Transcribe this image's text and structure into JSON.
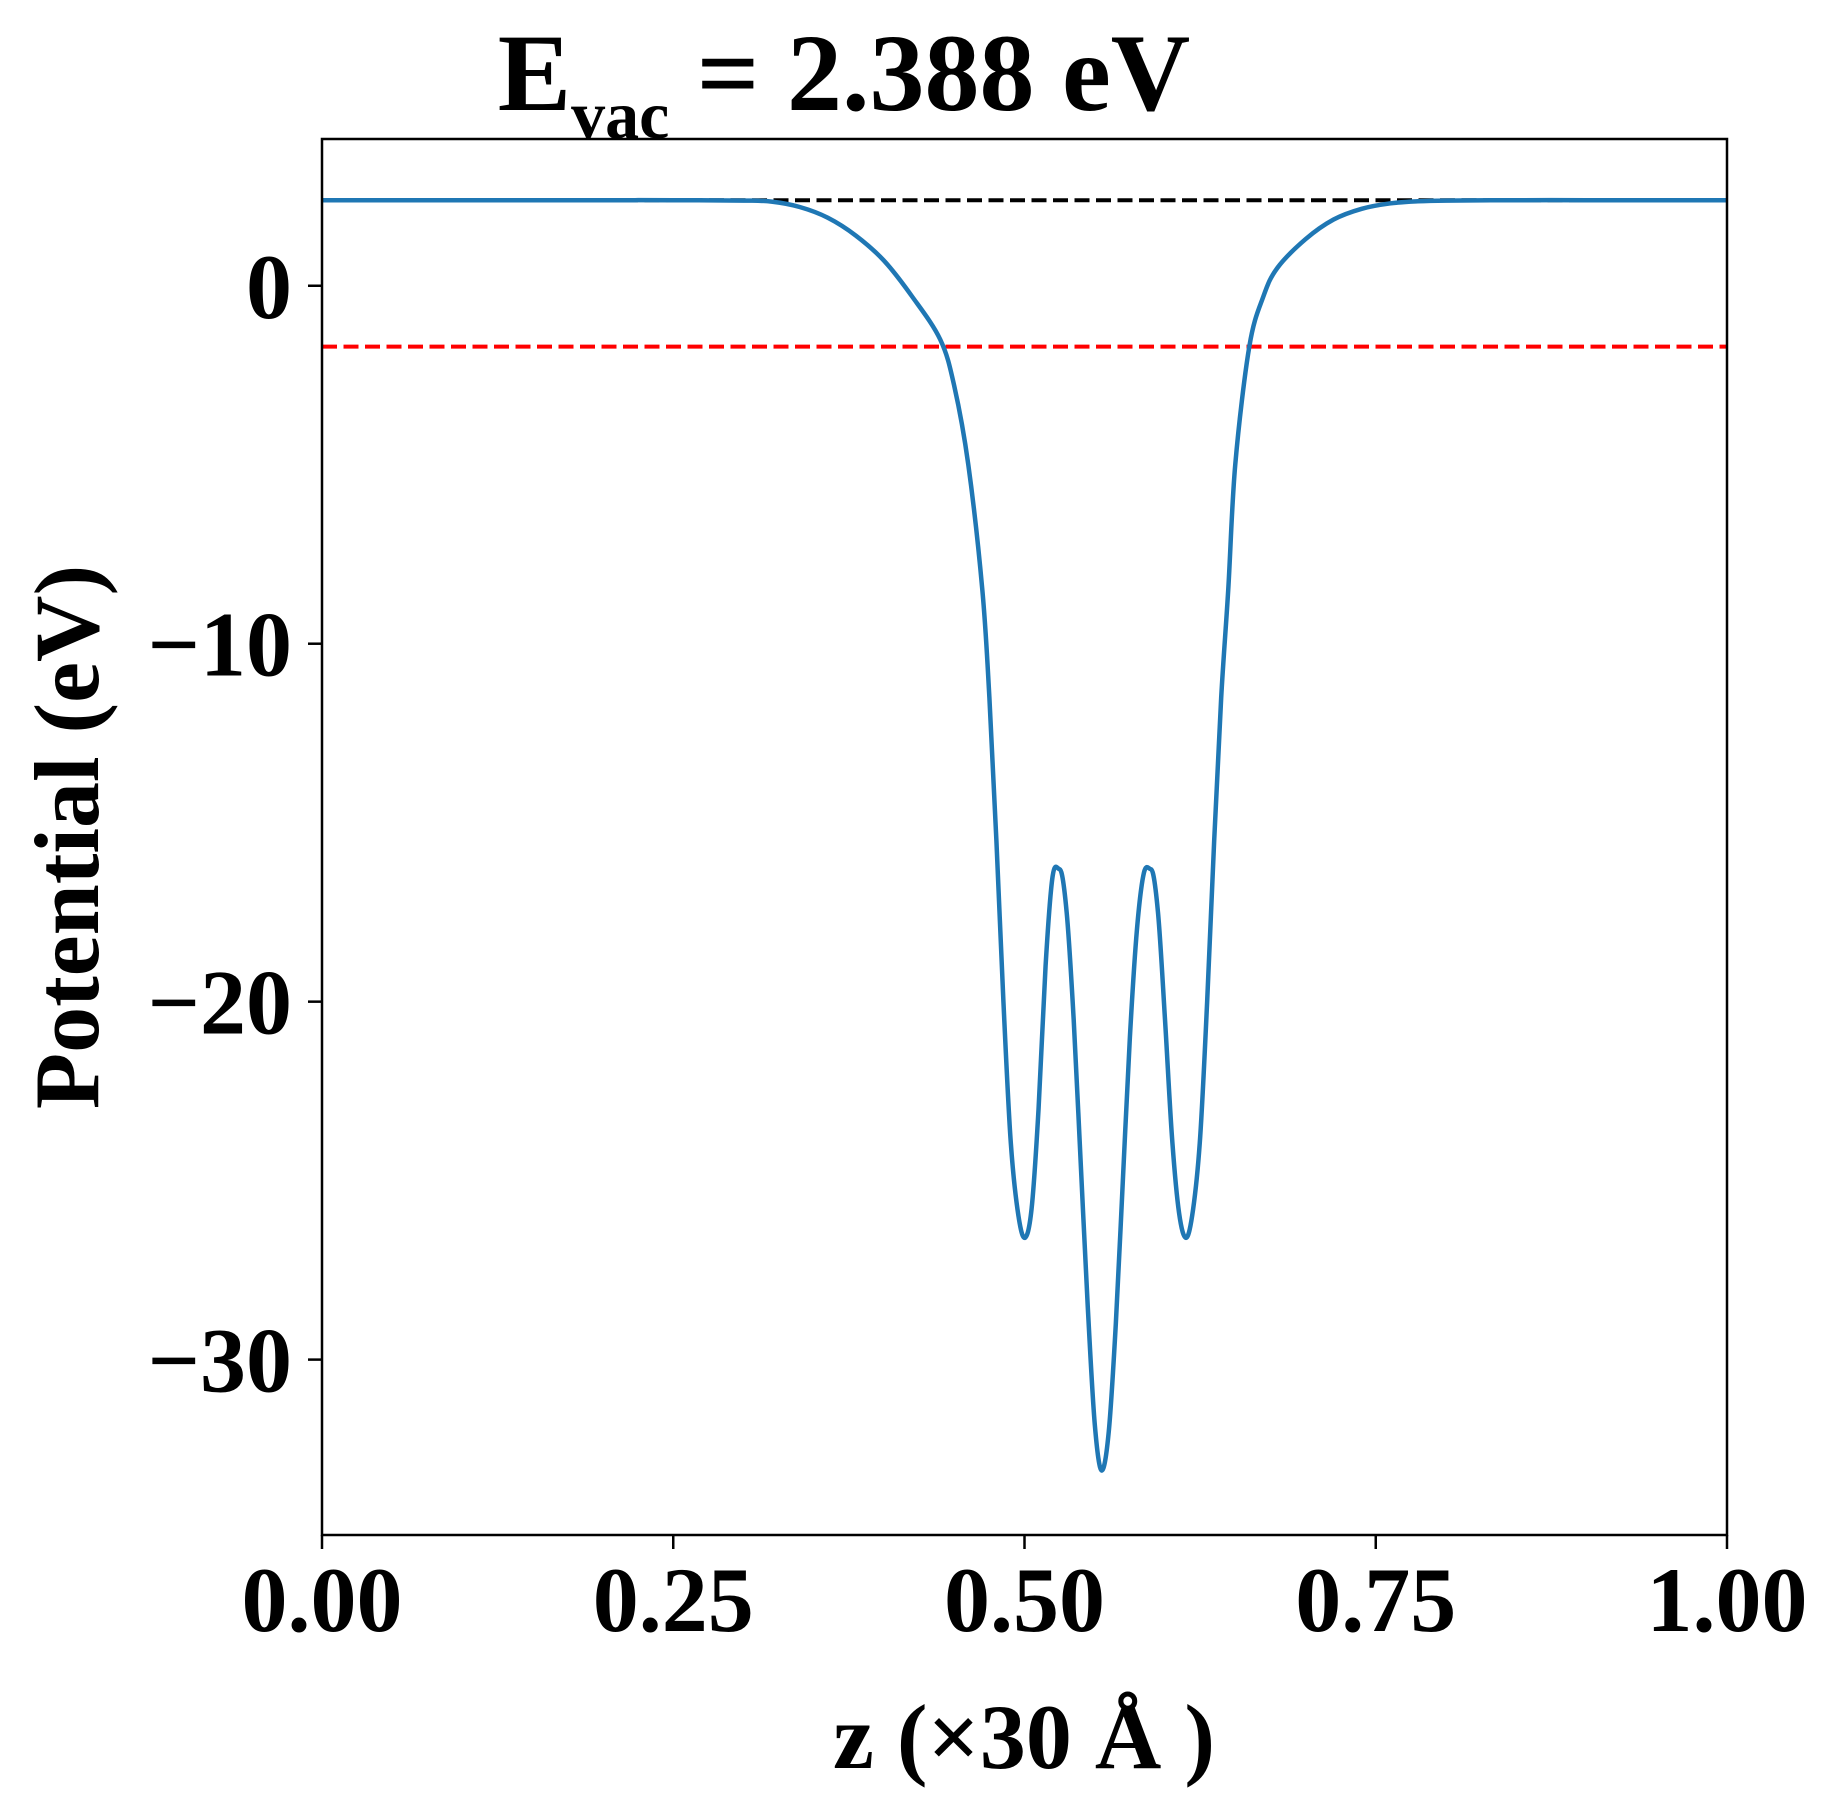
{
  "chart_data": {
    "type": "line",
    "title": {
      "prefix": "E",
      "subscript": "vac",
      "suffix": " = 2.388 eV"
    },
    "xlabel": "z (×30 Å )",
    "ylabel": "Potential (eV)",
    "xlim": [
      0,
      1
    ],
    "ylim": [
      -34.9,
      4.1
    ],
    "grid": false,
    "legend": "none",
    "x_ticks": [
      {
        "value": 0.0,
        "label": "0.00"
      },
      {
        "value": 0.25,
        "label": "0.25"
      },
      {
        "value": 0.5,
        "label": "0.50"
      },
      {
        "value": 0.75,
        "label": "0.75"
      },
      {
        "value": 1.0,
        "label": "1.00"
      }
    ],
    "y_ticks": [
      {
        "value": 0,
        "label": "0"
      },
      {
        "value": -10,
        "label": "−10"
      },
      {
        "value": -20,
        "label": "−20"
      },
      {
        "value": -30,
        "label": "−30"
      }
    ],
    "reference_lines": [
      {
        "y": 2.388,
        "color": "#000000",
        "style": "dashed"
      },
      {
        "y": -1.7,
        "color": "#ff0000",
        "style": "dashed"
      }
    ],
    "series": [
      {
        "color": "#1f77b4",
        "x": [
          0.0,
          0.05,
          0.1,
          0.15,
          0.2,
          0.25,
          0.3,
          0.32,
          0.34,
          0.36,
          0.38,
          0.4,
          0.42,
          0.44,
          0.45,
          0.46,
          0.47,
          0.475,
          0.48,
          0.485,
          0.49,
          0.495,
          0.5,
          0.505,
          0.51,
          0.515,
          0.52,
          0.525,
          0.53,
          0.535,
          0.54,
          0.545,
          0.55,
          0.555,
          0.56,
          0.565,
          0.57,
          0.575,
          0.58,
          0.585,
          0.59,
          0.595,
          0.6,
          0.605,
          0.61,
          0.615,
          0.62,
          0.625,
          0.63,
          0.635,
          0.64,
          0.645,
          0.65,
          0.66,
          0.67,
          0.68,
          0.7,
          0.72,
          0.74,
          0.76,
          0.78,
          0.8,
          0.85,
          0.9,
          0.95,
          1.0
        ],
        "y": [
          2.39,
          2.39,
          2.39,
          2.39,
          2.39,
          2.39,
          2.38,
          2.35,
          2.2,
          1.9,
          1.4,
          0.7,
          -0.3,
          -1.5,
          -2.8,
          -5.0,
          -8.5,
          -11.5,
          -15.5,
          -20.0,
          -23.8,
          -25.8,
          -26.6,
          -25.8,
          -23.0,
          -19.0,
          -16.5,
          -16.3,
          -17.5,
          -20.5,
          -24.5,
          -28.5,
          -31.8,
          -33.1,
          -32.0,
          -29.0,
          -25.0,
          -21.0,
          -18.0,
          -16.4,
          -16.3,
          -17.5,
          -20.5,
          -23.8,
          -25.9,
          -26.6,
          -25.8,
          -23.8,
          -20.0,
          -15.5,
          -11.5,
          -8.5,
          -5.0,
          -1.7,
          -0.3,
          0.5,
          1.3,
          1.85,
          2.15,
          2.3,
          2.36,
          2.38,
          2.39,
          2.39,
          2.39,
          2.39
        ]
      }
    ]
  }
}
